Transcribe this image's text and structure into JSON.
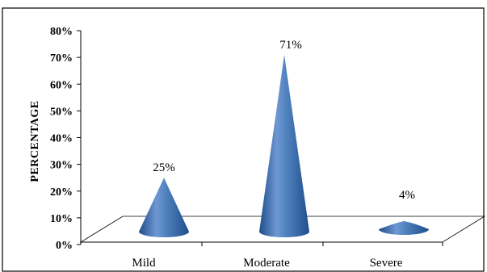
{
  "chart_data": {
    "type": "bar",
    "style": "3d-cone",
    "categories": [
      "Mild",
      "Moderate",
      "Severe"
    ],
    "values": [
      25,
      71,
      4
    ],
    "data_labels": [
      "25%",
      "71%",
      "4%"
    ],
    "ylabel": "PERCENTAGE",
    "xlabel": "",
    "ylim": [
      0,
      80
    ],
    "yticks": [
      "0%",
      "10%",
      "20%",
      "30%",
      "40%",
      "50%",
      "60%",
      "70%",
      "80%"
    ],
    "grid": false,
    "legend": "none",
    "colors": {
      "cone_light": "#a9c4ec",
      "cone_mid": "#4f81bd",
      "cone_dark": "#1f4e8c",
      "axis": "#000000"
    }
  }
}
